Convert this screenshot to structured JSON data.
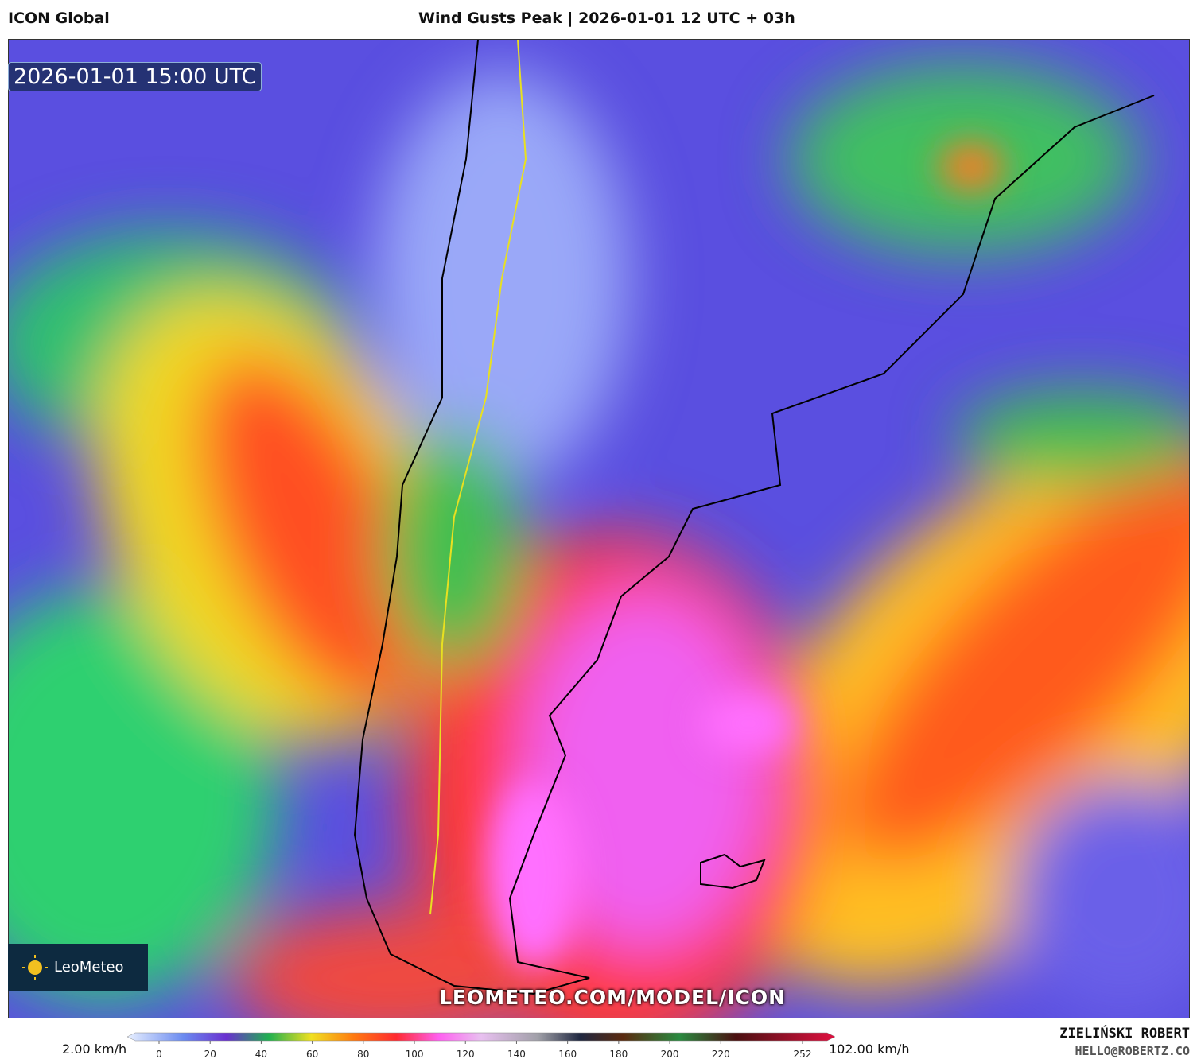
{
  "header": {
    "model": "ICON Global",
    "title": "Wind Gusts Peak | 2026-01-01 12 UTC + 03h"
  },
  "map": {
    "timestamp": "2026-01-01 15:00 UTC",
    "logo": "LeoMeteo",
    "watermark": "LEOMETEO.COM/MODEL/ICON"
  },
  "colorbar": {
    "min_label": "2.00 km/h",
    "max_label": "102.00 km/h",
    "ticks": [
      0,
      20,
      40,
      60,
      80,
      100,
      120,
      140,
      160,
      180,
      200,
      220,
      252
    ]
  },
  "author": {
    "name": "ZIELIŃSKI ROBERT",
    "email": "HELLO@ROBERTZ.CO"
  }
}
